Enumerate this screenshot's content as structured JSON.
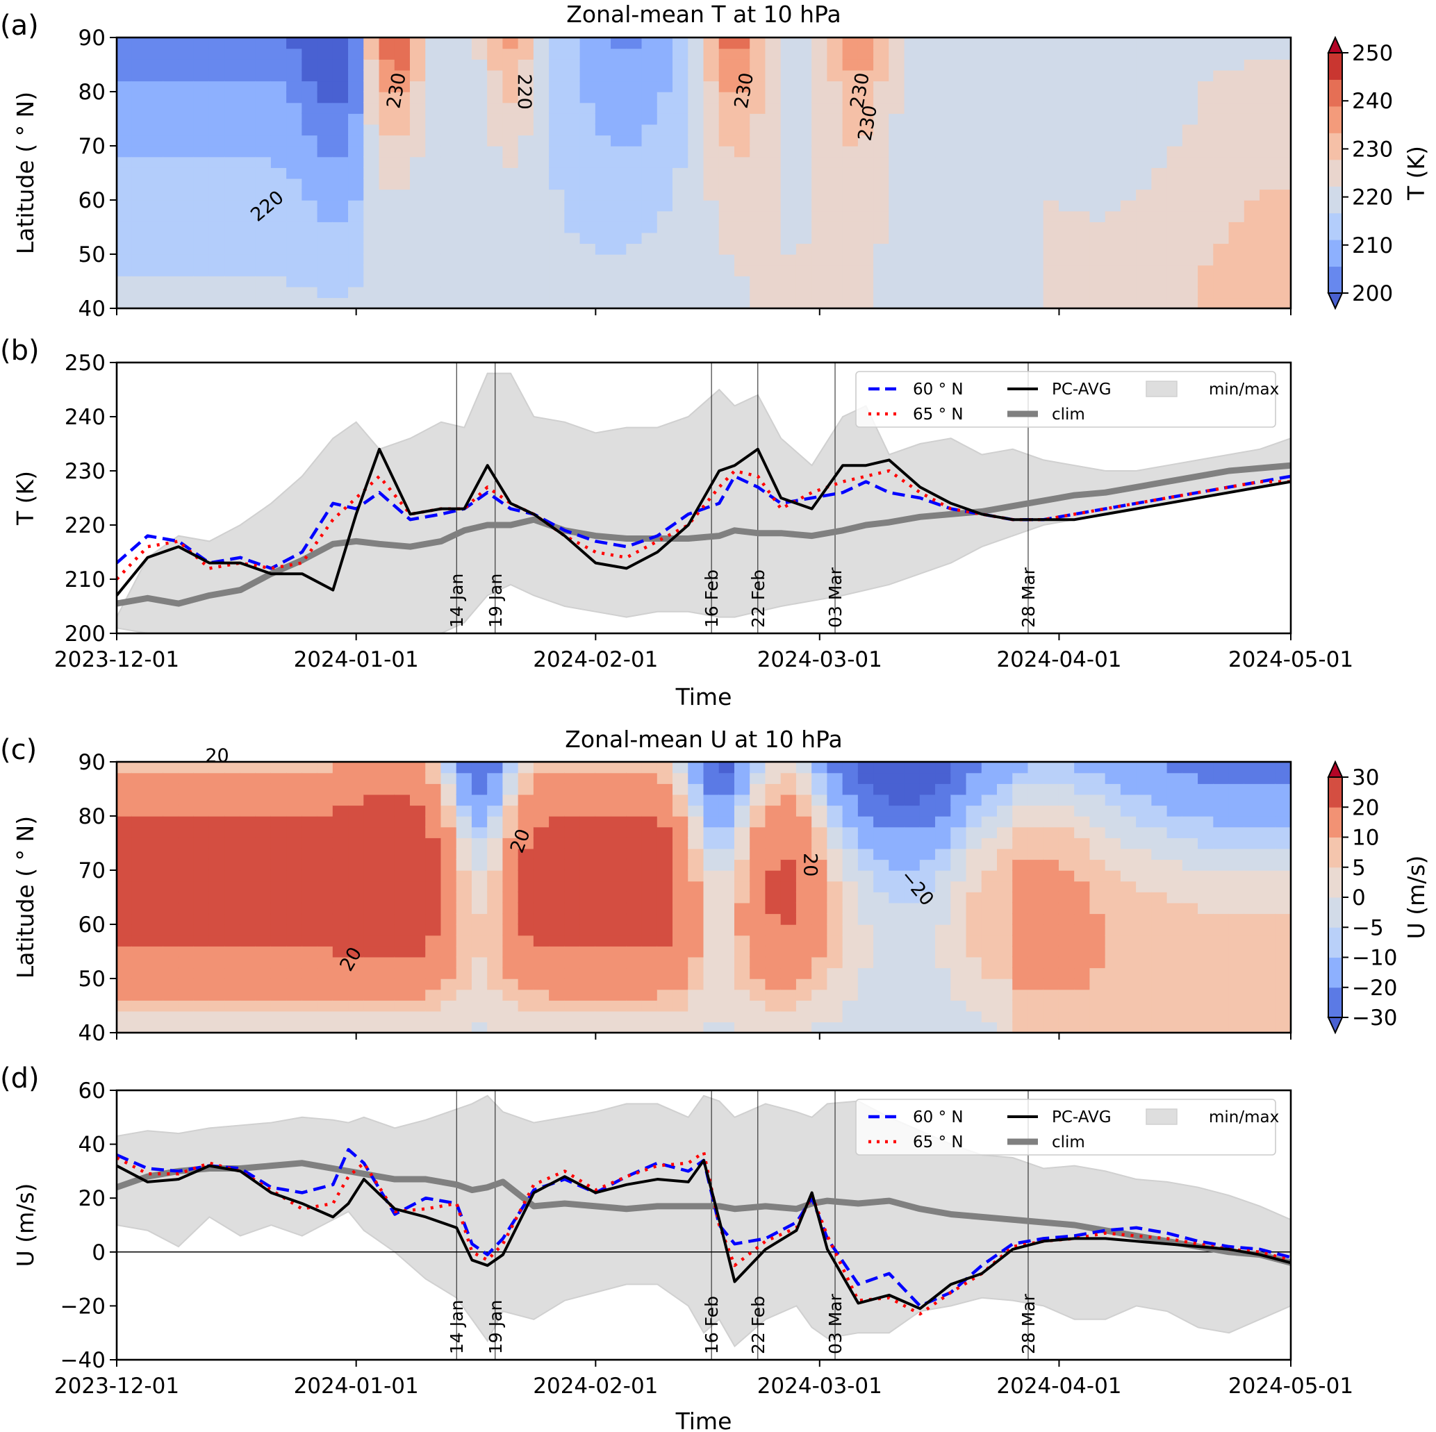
{
  "figure": {
    "panel_labels": [
      "(a)",
      "(b)",
      "(c)",
      "(d)"
    ]
  },
  "chart_data": [
    {
      "id": "a",
      "type": "heatmap",
      "title": "Zonal-mean T at 10 hPa",
      "xlabel": "",
      "ylabel": "Latitude ( ° N)",
      "x_ticks": [
        "2023-12-01",
        "2024-01-01",
        "2024-02-01",
        "2024-03-01",
        "2024-04-01",
        "2024-05-01"
      ],
      "x_range": [
        "2023-12-01",
        "2024-05-01"
      ],
      "y_ticks": [
        40,
        50,
        60,
        70,
        80,
        90
      ],
      "ylim": [
        40,
        90
      ],
      "colorbar": {
        "label": "T (K)",
        "ticks": [
          200,
          210,
          220,
          230,
          240,
          250
        ],
        "levels": [
          200,
          205,
          210,
          215,
          220,
          225,
          230,
          235,
          240,
          245,
          250
        ],
        "colors": [
          "#4961d2",
          "#6788ee",
          "#8db0fe",
          "#b3cdfb",
          "#d0dae9",
          "#e9d5cd",
          "#f5c0a7",
          "#f39b7b",
          "#e56f55",
          "#c93630",
          "#b40426"
        ],
        "extend": "both"
      },
      "contour_labels": [
        "220",
        "230",
        "220",
        "230",
        "230",
        "230"
      ],
      "description": "Latitude-time section; cold vortex (<215 K) in Dec, warming pulses near early Jan, mid Jan, mid-late Feb and early Mar reaching ~250 K at pole; after mid Mar field is ~220-230 K"
    },
    {
      "id": "b",
      "type": "line",
      "xlabel": "Time",
      "ylabel": "T (K)",
      "x_ticks": [
        "2023-12-01",
        "2024-01-01",
        "2024-02-01",
        "2024-03-01",
        "2024-04-01",
        "2024-05-01"
      ],
      "y_ticks": [
        200,
        210,
        220,
        230,
        240,
        250
      ],
      "ylim": [
        200,
        250
      ],
      "x_days": [
        0,
        4,
        8,
        12,
        16,
        20,
        24,
        28,
        31,
        34,
        38,
        42,
        45,
        48,
        51,
        54,
        58,
        62,
        66,
        70,
        74,
        78,
        80,
        83,
        86,
        90,
        94,
        97,
        100,
        104,
        108,
        112,
        116,
        120,
        124,
        128,
        132,
        136,
        140,
        144,
        148,
        152
      ],
      "series": [
        {
          "name": "60 ° N",
          "style": "dashed",
          "color": "#0000ff",
          "values": [
            213,
            218,
            217,
            213,
            214,
            212,
            215,
            224,
            223,
            226,
            221,
            222,
            223,
            226,
            223,
            222,
            219,
            217,
            216,
            218,
            222,
            224,
            229,
            227,
            224,
            225,
            226,
            228,
            226,
            225,
            223,
            222,
            221,
            221,
            222,
            223,
            224,
            225,
            226,
            227,
            228,
            229
          ]
        },
        {
          "name": "65 ° N",
          "style": "dotted",
          "color": "#ff0000",
          "values": [
            210,
            216,
            217,
            212,
            213,
            212,
            213,
            221,
            225,
            229,
            222,
            223,
            223,
            227,
            224,
            222,
            218,
            215,
            214,
            217,
            220,
            227,
            230,
            229,
            223,
            226,
            228,
            229,
            230,
            226,
            223,
            222,
            221,
            221,
            222,
            223,
            224,
            225,
            226,
            227,
            228,
            228
          ]
        },
        {
          "name": "PC-AVG",
          "style": "solid",
          "color": "#000000",
          "values": [
            207,
            214,
            216,
            213,
            213,
            211,
            211,
            208,
            222,
            234,
            222,
            223,
            223,
            231,
            224,
            222,
            218,
            213,
            212,
            215,
            220,
            230,
            231,
            234,
            225,
            223,
            231,
            231,
            232,
            227,
            224,
            222,
            221,
            221,
            221,
            222,
            223,
            224,
            225,
            226,
            227,
            228
          ]
        },
        {
          "name": "clim",
          "style": "thick",
          "color": "#808080",
          "values": [
            205.5,
            206.5,
            205.5,
            207,
            208,
            211,
            213.5,
            216.5,
            217,
            216.5,
            216,
            217,
            219,
            220,
            220,
            221,
            219,
            218,
            217.5,
            217.5,
            217.5,
            218,
            219,
            218.5,
            218.5,
            218,
            219,
            220,
            220.5,
            221.5,
            222,
            222.5,
            223.5,
            224.5,
            225.5,
            226,
            227,
            228,
            229,
            230,
            230.5,
            231
          ]
        }
      ],
      "band": {
        "name": "min/max",
        "upper": [
          203,
          214,
          218,
          217,
          220,
          224,
          229,
          236,
          239,
          234,
          236,
          239,
          238,
          248,
          248,
          240,
          239,
          237,
          238,
          238,
          240,
          245,
          242,
          244,
          236,
          231,
          240,
          242,
          233,
          235,
          236,
          233,
          234,
          232,
          231,
          230,
          230,
          231,
          232,
          233,
          234,
          236
        ],
        "lower": [
          201,
          200,
          199,
          199,
          199,
          199,
          200,
          200,
          200,
          200,
          200,
          200,
          202,
          207,
          209,
          207,
          205,
          204,
          203,
          204,
          204,
          203,
          203,
          204,
          205,
          206,
          207,
          208,
          209,
          211,
          213,
          216,
          218,
          220,
          221,
          222,
          223,
          224,
          225,
          226,
          227,
          228
        ]
      },
      "event_lines": [
        {
          "label": "14 Jan",
          "day": 44
        },
        {
          "label": "19 Jan",
          "day": 49
        },
        {
          "label": "16 Feb",
          "day": 77
        },
        {
          "label": "22 Feb",
          "day": 83
        },
        {
          "label": "03 Mar",
          "day": 93
        },
        {
          "label": "28 Mar",
          "day": 118
        }
      ],
      "legend": {
        "placement": "top-right",
        "entries": [
          "60 ° N",
          "65 ° N",
          "PC-AVG",
          "clim",
          "min/max"
        ]
      }
    },
    {
      "id": "c",
      "type": "heatmap",
      "title": "Zonal-mean U at 10 hPa",
      "xlabel": "",
      "ylabel": "Latitude ( ° N)",
      "x_ticks": [
        "2023-12-01",
        "2024-01-01",
        "2024-02-01",
        "2024-03-01",
        "2024-04-01",
        "2024-05-01"
      ],
      "y_ticks": [
        40,
        50,
        60,
        70,
        80,
        90
      ],
      "ylim": [
        40,
        90
      ],
      "colorbar": {
        "label": "U (m/s)",
        "ticks": [
          -30,
          -20,
          -10,
          -5,
          0,
          5,
          10,
          20,
          30
        ],
        "colors": [
          "#4961d2",
          "#5b7ae5",
          "#8db0fe",
          "#b9d0f9",
          "#d2dbe8",
          "#eadad2",
          "#f4c5ad",
          "#f29274",
          "#d44e41",
          "#b40426"
        ],
        "extend": "both"
      },
      "contour_labels": [
        "20",
        "20",
        "20",
        "-20",
        "20"
      ],
      "description": "Strong westerlies (>20 m/s) in Dec, early-mid Jan and Feb; easterly reversals at mid Jan, mid Feb and early-mid March (minimum < -20 m/s near 70°N); weak easterly at high latitudes after April"
    },
    {
      "id": "d",
      "type": "line",
      "xlabel": "Time",
      "ylabel": "U (m/s)",
      "x_ticks": [
        "2023-12-01",
        "2024-01-01",
        "2024-02-01",
        "2024-03-01",
        "2024-04-01",
        "2024-05-01"
      ],
      "y_ticks": [
        -40,
        -20,
        0,
        20,
        40,
        60
      ],
      "ylim": [
        -40,
        60
      ],
      "x_days": [
        0,
        4,
        8,
        12,
        16,
        20,
        24,
        28,
        30,
        32,
        36,
        40,
        44,
        46,
        48,
        50,
        54,
        58,
        62,
        66,
        70,
        74,
        76,
        78,
        80,
        84,
        88,
        90,
        92,
        96,
        100,
        104,
        108,
        112,
        116,
        120,
        124,
        128,
        132,
        136,
        140,
        144,
        148,
        152
      ],
      "series": [
        {
          "name": "60 ° N",
          "style": "dashed",
          "color": "#0000ff",
          "values": [
            36,
            31,
            30,
            32,
            31,
            24,
            22,
            25,
            38,
            33,
            14,
            20,
            18,
            3,
            -1,
            5,
            23,
            27,
            22,
            28,
            33,
            30,
            34,
            10,
            3,
            5,
            11,
            20,
            5,
            -12,
            -8,
            -20,
            -15,
            -5,
            3,
            5,
            6,
            8,
            9,
            7,
            4,
            2,
            1,
            -2
          ]
        },
        {
          "name": "65 ° N",
          "style": "dotted",
          "color": "#ff0000",
          "values": [
            35,
            29,
            29,
            33,
            30,
            23,
            16,
            18,
            28,
            33,
            15,
            16,
            18,
            0,
            -3,
            3,
            25,
            30,
            23,
            28,
            32,
            33,
            37,
            10,
            -5,
            4,
            9,
            21,
            6,
            -18,
            -17,
            -23,
            -15,
            -8,
            2,
            4,
            5,
            7,
            6,
            5,
            3,
            1,
            0,
            -3
          ]
        },
        {
          "name": "PC-AVG",
          "style": "solid",
          "color": "#000000",
          "values": [
            32,
            26,
            27,
            32,
            30,
            22,
            18,
            13,
            18,
            27,
            16,
            13,
            9,
            -3,
            -5,
            -1,
            22,
            28,
            22,
            25,
            27,
            26,
            34,
            12,
            -11,
            1,
            8,
            22,
            1,
            -19,
            -16,
            -21,
            -12,
            -8,
            1,
            4,
            5,
            5,
            4,
            3,
            2,
            1,
            -1,
            -4
          ]
        },
        {
          "name": "clim",
          "style": "thick",
          "color": "#808080",
          "values": [
            24,
            28,
            30,
            31,
            31,
            32,
            33,
            31,
            30,
            29,
            27,
            27,
            25,
            23,
            24,
            26,
            17,
            18,
            17,
            16,
            17,
            17,
            17,
            17,
            16,
            17,
            16,
            18,
            19,
            18,
            19,
            16,
            14,
            13,
            12,
            11,
            10,
            8,
            6,
            4,
            2,
            0,
            -1,
            -4
          ]
        }
      ],
      "band": {
        "name": "min/max",
        "upper": [
          43,
          45,
          44,
          46,
          47,
          48,
          50,
          49,
          48,
          50,
          46,
          49,
          53,
          55,
          58,
          52,
          48,
          50,
          52,
          55,
          55,
          50,
          58,
          56,
          50,
          55,
          52,
          50,
          55,
          56,
          50,
          45,
          40,
          36,
          35,
          31,
          32,
          30,
          27,
          26,
          24,
          21,
          17,
          12
        ],
        "lower": [
          10,
          8,
          2,
          13,
          6,
          10,
          6,
          12,
          15,
          8,
          0,
          -10,
          -17,
          -25,
          -33,
          -22,
          -25,
          -18,
          -15,
          -12,
          -12,
          -20,
          -30,
          -25,
          -35,
          -25,
          -20,
          -28,
          -32,
          -30,
          -30,
          -22,
          -20,
          -17,
          -18,
          -20,
          -25,
          -25,
          -20,
          -22,
          -28,
          -30,
          -25,
          -20
        ]
      },
      "zero_line": true,
      "event_lines": [
        {
          "label": "14 Jan",
          "day": 44
        },
        {
          "label": "19 Jan",
          "day": 49
        },
        {
          "label": "16 Feb",
          "day": 77
        },
        {
          "label": "22 Feb",
          "day": 83
        },
        {
          "label": "03 Mar",
          "day": 93
        },
        {
          "label": "28 Mar",
          "day": 118
        }
      ],
      "legend": {
        "placement": "top-right",
        "entries": [
          "60 ° N",
          "65 ° N",
          "PC-AVG",
          "clim",
          "min/max"
        ]
      }
    }
  ]
}
